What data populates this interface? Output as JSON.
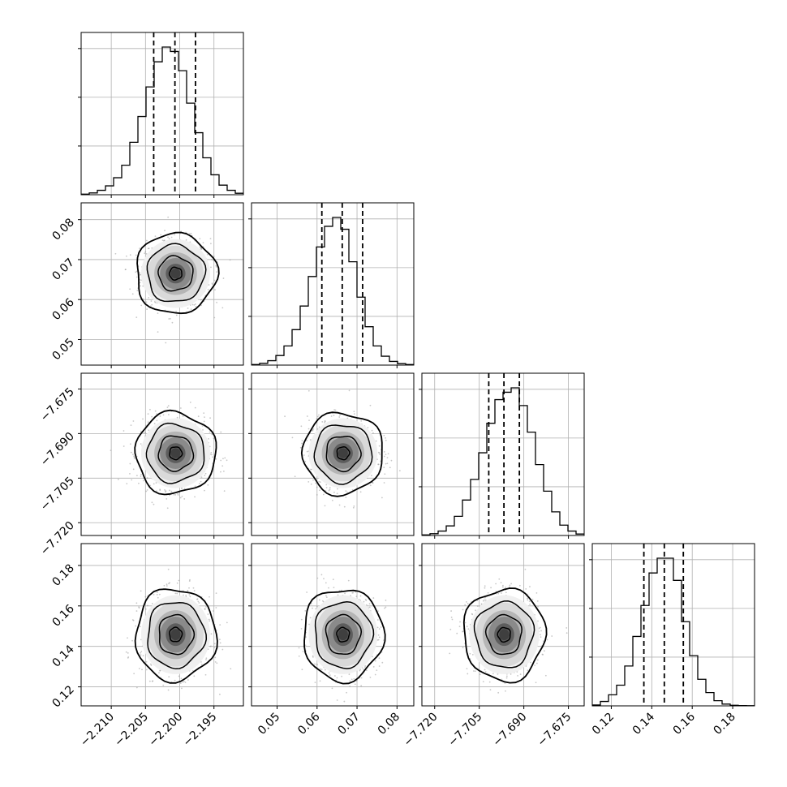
{
  "chart_data": {
    "type": "corner",
    "colors": {
      "hist": "#000000",
      "contour": "#000000",
      "grid": "#b0b0b0",
      "points": "#9a9a9a",
      "quantile": "#000000"
    },
    "grid": true,
    "quantile_style": "dashed",
    "parameters": [
      {
        "ticks": [
          -2.21,
          -2.205,
          -2.2,
          -2.195
        ],
        "tick_labels": [
          "−2.210",
          "−2.205",
          "−2.200",
          "−2.195"
        ],
        "range": [
          -2.2144,
          -2.1907
        ],
        "mean": -2.2006,
        "sd": 0.0024,
        "quantiles": [
          -2.2038,
          -2.2007,
          -2.1977
        ],
        "hist_bins": [
          0.004,
          0.012,
          0.03,
          0.06,
          0.115,
          0.2,
          0.355,
          0.53,
          0.73,
          0.9,
          1.0,
          0.97,
          0.84,
          0.62,
          0.42,
          0.25,
          0.135,
          0.065,
          0.03,
          0.01
        ]
      },
      {
        "ticks": [
          0.05,
          0.06,
          0.07,
          0.08
        ],
        "tick_labels": [
          "0.05",
          "0.06",
          "0.07",
          "0.08"
        ],
        "range": [
          0.0436,
          0.0842
        ],
        "mean": 0.0665,
        "sd": 0.0041,
        "quantiles": [
          0.0612,
          0.0663,
          0.0714
        ],
        "hist_bins": [
          0.004,
          0.012,
          0.03,
          0.065,
          0.13,
          0.24,
          0.4,
          0.6,
          0.8,
          0.94,
          1.0,
          0.92,
          0.7,
          0.46,
          0.26,
          0.13,
          0.06,
          0.025,
          0.01,
          0.004
        ]
      },
      {
        "ticks": [
          -7.72,
          -7.705,
          -7.69,
          -7.675
        ],
        "tick_labels": [
          "−7.720",
          "−7.705",
          "−7.690",
          "−7.675"
        ],
        "range": [
          -7.7243,
          -7.6697
        ],
        "mean": -7.6966,
        "sd": 0.0056,
        "quantiles": [
          -7.7018,
          -7.6967,
          -7.6915
        ],
        "hist_bins": [
          0.004,
          0.012,
          0.03,
          0.065,
          0.13,
          0.24,
          0.38,
          0.56,
          0.76,
          0.92,
          0.97,
          1.0,
          0.88,
          0.7,
          0.48,
          0.3,
          0.16,
          0.07,
          0.03,
          0.01
        ]
      },
      {
        "ticks": [
          0.12,
          0.14,
          0.16,
          0.18
        ],
        "tick_labels": [
          "0.12",
          "0.14",
          "0.16",
          "0.18"
        ],
        "range": [
          0.1106,
          0.1908
        ],
        "mean": 0.1458,
        "sd": 0.0093,
        "quantiles": [
          0.1361,
          0.1462,
          0.1556
        ],
        "hist_bins": [
          0.006,
          0.03,
          0.075,
          0.14,
          0.27,
          0.47,
          0.68,
          0.9,
          1.0,
          1.0,
          0.85,
          0.57,
          0.34,
          0.18,
          0.09,
          0.035,
          0.012,
          0.004,
          0.002,
          0.001
        ]
      }
    ],
    "histogram_max_fraction": 0.91,
    "contour_levels": 3,
    "scatter_points_per_panel": 900
  }
}
